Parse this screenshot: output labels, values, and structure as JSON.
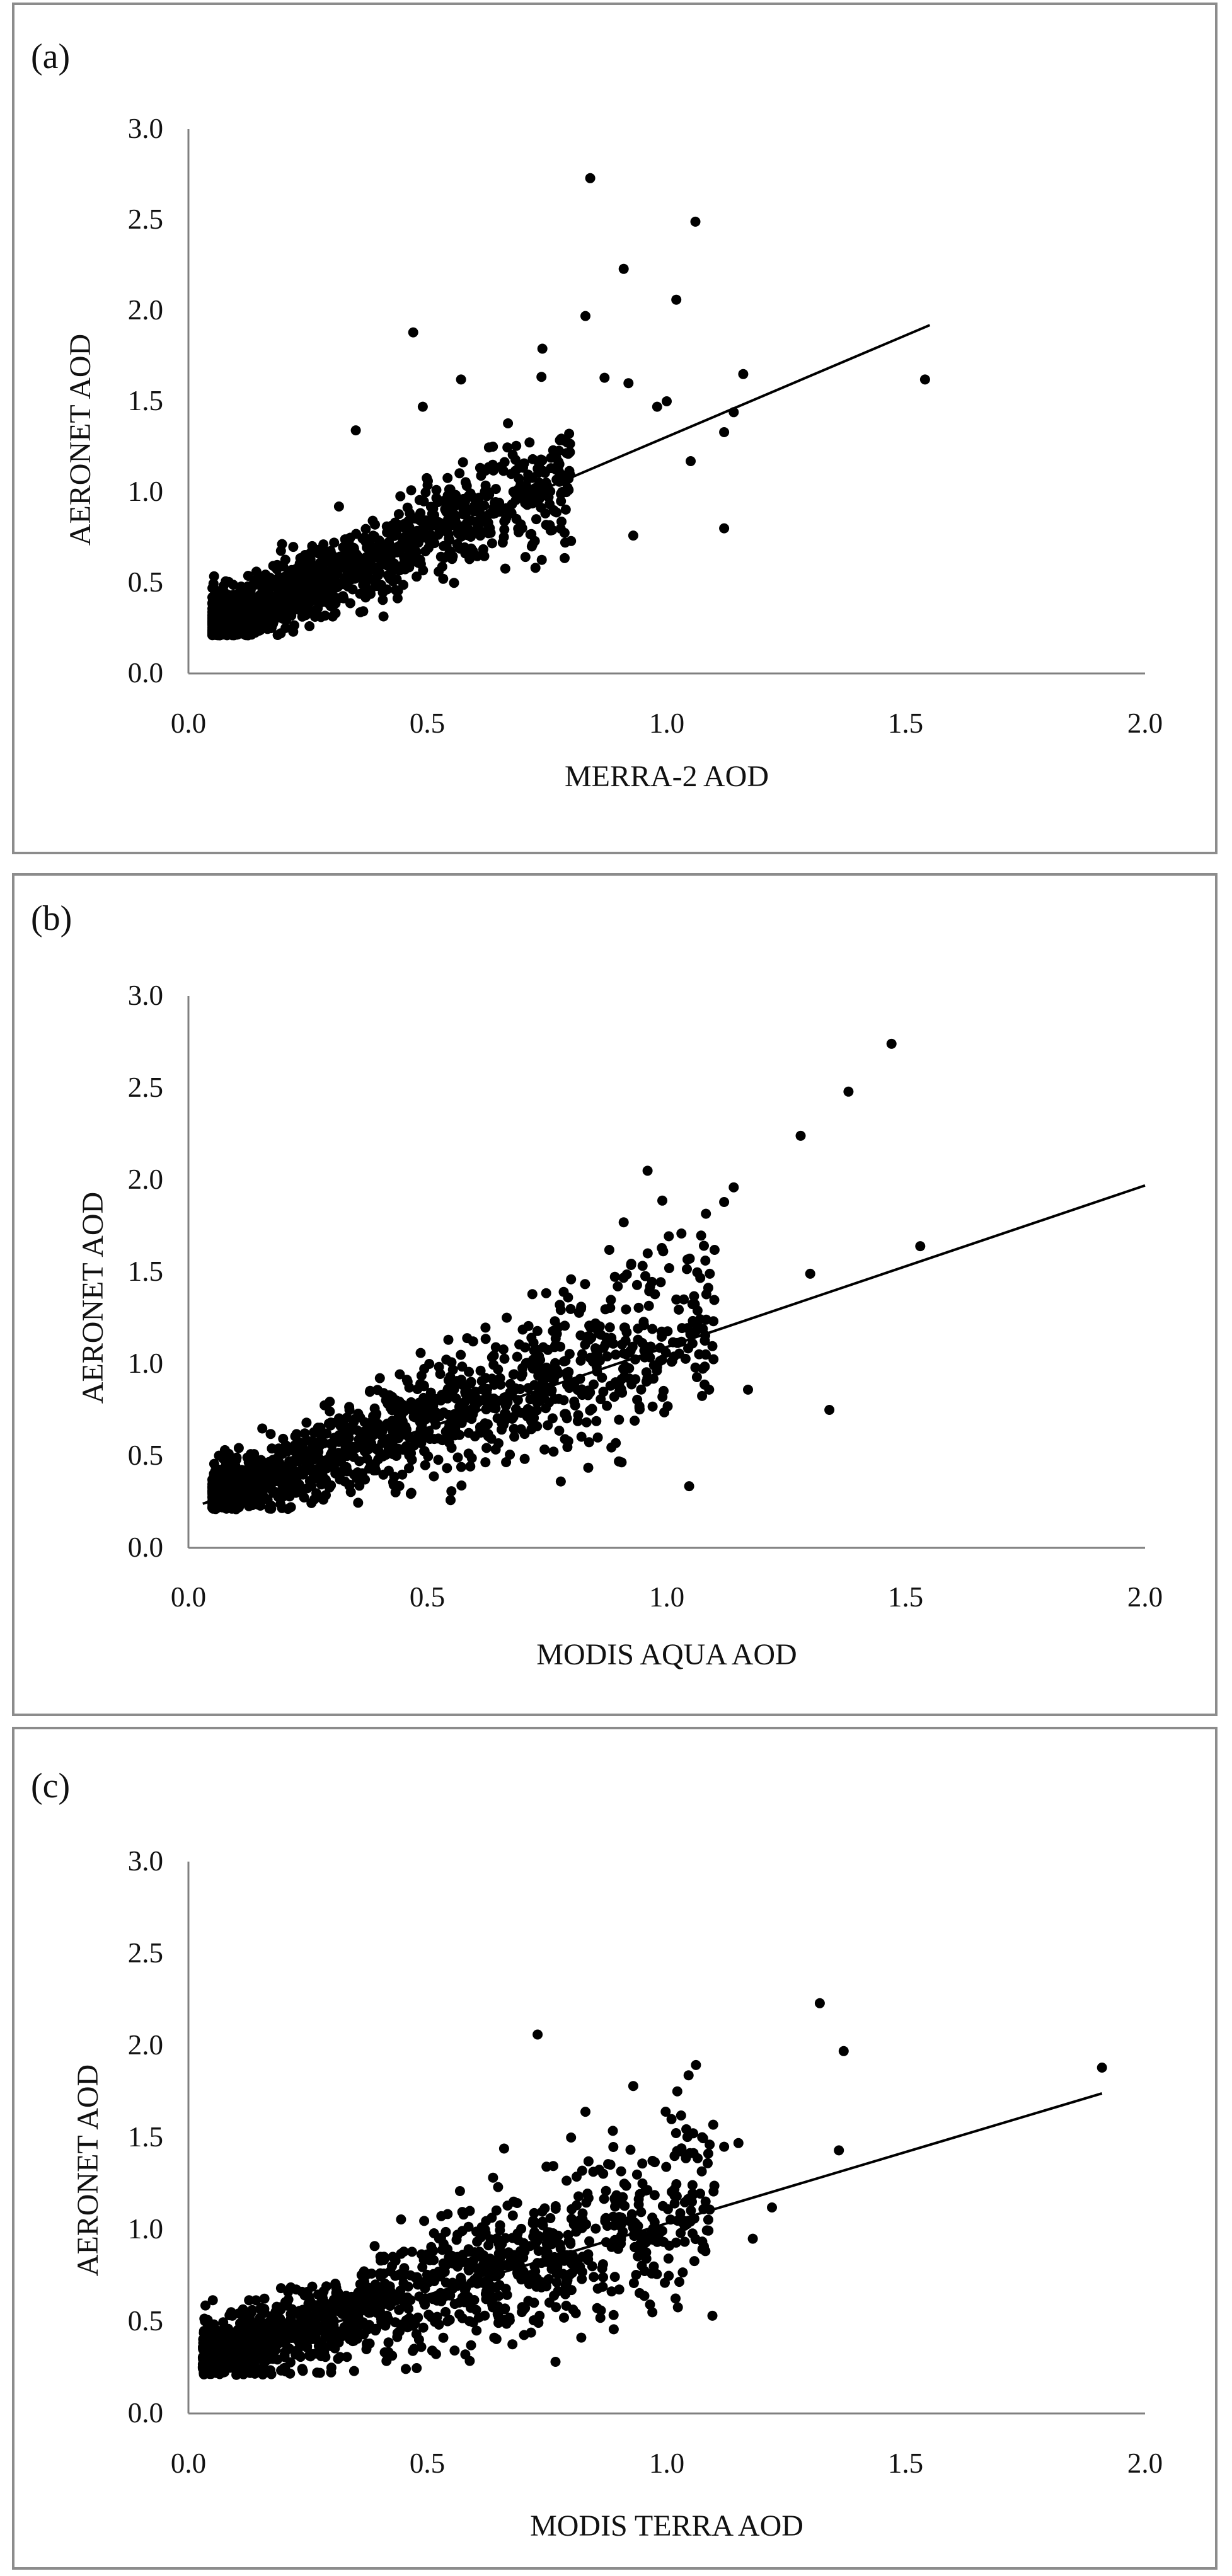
{
  "chart_data": [
    {
      "type": "scatter",
      "panel_label": "(a)",
      "xlabel": "MERRA-2 AOD",
      "ylabel": "AERONET AOD",
      "xlim": [
        0,
        2.0
      ],
      "ylim": [
        0,
        3.0
      ],
      "xticks": [
        "0.0",
        "0.5",
        "1.0",
        "1.5",
        "2.0"
      ],
      "yticks": [
        "0.0",
        "0.5",
        "1.0",
        "1.5",
        "2.0",
        "2.5",
        "3.0"
      ],
      "grid": false,
      "trendline": {
        "x": [
          0.05,
          1.55
        ],
        "y": [
          0.24,
          1.92
        ]
      },
      "cluster": {
        "n": 1300,
        "seed": 11,
        "xmin": 0.05,
        "xmax": 0.8,
        "skew": 2.0,
        "slope": 1.12,
        "intercept": 0.2,
        "noise": 0.07,
        "noise_growth": 0.14
      },
      "outliers": {
        "x": [
          0.84,
          1.06,
          0.91,
          1.02,
          0.83,
          0.47,
          1.54,
          1.16,
          1.12,
          1.14,
          0.87,
          1.0,
          0.98,
          1.12,
          0.74,
          0.57,
          0.49,
          0.35,
          0.92,
          1.05,
          0.8,
          0.93
        ],
        "y": [
          2.73,
          2.49,
          2.23,
          2.06,
          1.97,
          1.88,
          1.62,
          1.65,
          1.33,
          1.44,
          1.63,
          1.5,
          1.47,
          0.8,
          1.79,
          1.62,
          1.47,
          1.34,
          1.6,
          1.17,
          0.73,
          0.76
        ]
      }
    },
    {
      "type": "scatter",
      "panel_label": "(b)",
      "xlabel": "MODIS AQUA AOD",
      "ylabel": "AERONET AOD",
      "xlim": [
        0,
        2.0
      ],
      "ylim": [
        0,
        3.0
      ],
      "xticks": [
        "0.0",
        "0.5",
        "1.0",
        "1.5",
        "2.0"
      ],
      "yticks": [
        "0.0",
        "0.5",
        "1.0",
        "1.5",
        "2.0",
        "2.5",
        "3.0"
      ],
      "grid": false,
      "trendline": {
        "x": [
          0.03,
          2.0
        ],
        "y": [
          0.24,
          1.97
        ]
      },
      "cluster": {
        "n": 1300,
        "seed": 23,
        "xmin": 0.05,
        "xmax": 1.1,
        "skew": 1.7,
        "slope": 0.9,
        "intercept": 0.24,
        "noise": 0.06,
        "noise_growth": 0.18
      },
      "outliers": {
        "x": [
          1.47,
          1.38,
          1.28,
          0.96,
          1.14,
          1.12,
          1.53,
          1.3,
          0.91,
          1.34,
          1.17,
          1.09,
          0.88,
          0.9,
          1.1,
          0.97,
          1.06,
          0.8,
          1.02
        ],
        "y": [
          2.74,
          2.48,
          2.24,
          2.05,
          1.96,
          1.88,
          1.64,
          1.49,
          1.77,
          0.75,
          0.86,
          1.49,
          1.62,
          0.47,
          1.62,
          1.19,
          0.98,
          1.46,
          1.35
        ]
      }
    },
    {
      "type": "scatter",
      "panel_label": "(c)",
      "xlabel": "MODIS TERRA AOD",
      "ylabel": "AERONET AOD",
      "xlim": [
        0,
        2.0
      ],
      "ylim": [
        0,
        3.0
      ],
      "xticks": [
        "0.0",
        "0.5",
        "1.0",
        "1.5",
        "2.0"
      ],
      "yticks": [
        "0.0",
        "0.5",
        "1.0",
        "1.5",
        "2.0",
        "2.5",
        "3.0"
      ],
      "grid": false,
      "trendline": {
        "x": [
          0.03,
          1.91
        ],
        "y": [
          0.28,
          1.74
        ]
      },
      "cluster": {
        "n": 1400,
        "seed": 37,
        "xmin": 0.03,
        "xmax": 1.1,
        "skew": 1.6,
        "slope": 0.78,
        "intercept": 0.28,
        "noise": 0.08,
        "noise_growth": 0.16
      },
      "outliers": {
        "x": [
          1.32,
          1.91,
          1.37,
          0.73,
          1.36,
          0.93,
          0.83,
          1.03,
          1.01,
          1.12,
          1.15,
          0.66,
          0.97,
          0.8,
          1.18,
          1.22,
          0.9
        ],
        "y": [
          2.23,
          1.88,
          1.97,
          2.06,
          1.43,
          1.78,
          1.64,
          1.62,
          1.6,
          1.45,
          1.47,
          1.44,
          0.55,
          1.5,
          0.95,
          1.12,
          1.15
        ]
      }
    }
  ]
}
